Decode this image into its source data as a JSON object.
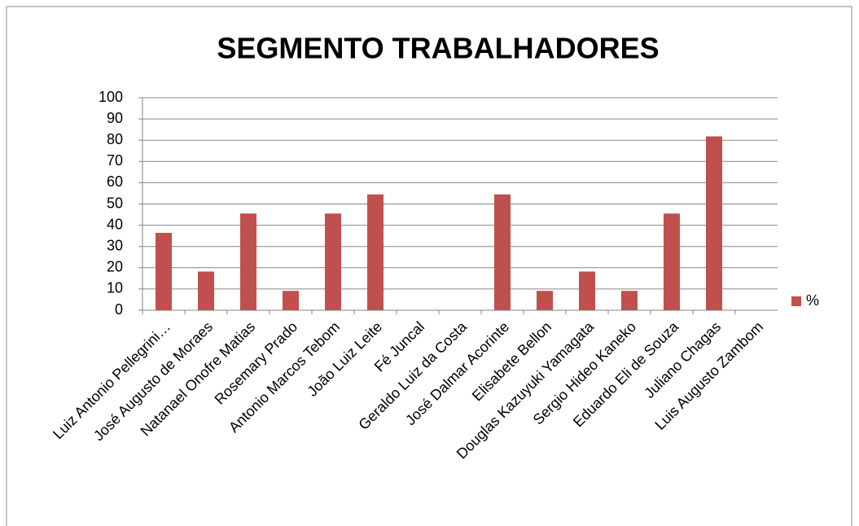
{
  "chart_data": {
    "type": "bar",
    "title": "SEGMENTO TRABALHADORES",
    "categories": [
      "Luiz Antonio Pellegrini…",
      "José Augusto de Moraes",
      "Natanael Onofre Matias",
      "Rosemary Prado",
      "Antonio Marcos Tebom",
      "João Luiz Leite",
      "Fé Juncal",
      "Geraldo Luiz da Costa",
      "José Dalmar Acorinte",
      "Elisabete Bellon",
      "Douglas Kazuyuki Yamagata",
      "Sergio Hideo Kaneko",
      "Eduardo Eli de Souza",
      "Juliano Chagas",
      "Luis Augusto Zambom"
    ],
    "series": [
      {
        "name": "%",
        "color": "#c0504d",
        "values": [
          36.4,
          18.2,
          45.5,
          9.1,
          45.5,
          54.5,
          0,
          0,
          54.5,
          9.1,
          18.2,
          9.1,
          45.5,
          81.8,
          0
        ]
      }
    ],
    "ylim": [
      0,
      100
    ],
    "yticks": [
      0,
      10,
      20,
      30,
      40,
      50,
      60,
      70,
      80,
      90,
      100
    ],
    "grid": true,
    "legend": "right"
  }
}
